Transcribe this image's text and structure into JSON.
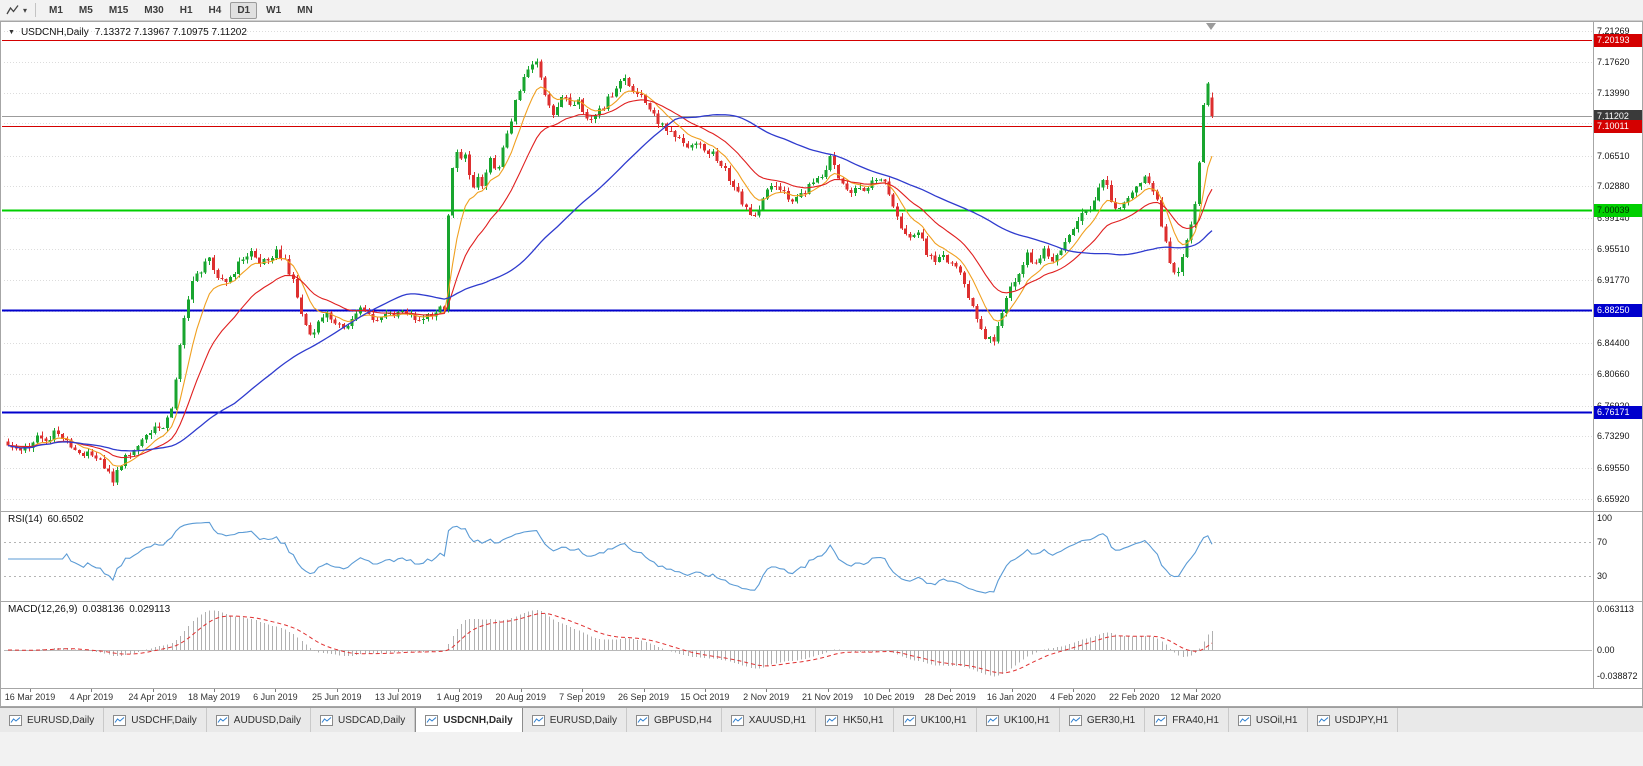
{
  "toolbar": {
    "timeframes": [
      "M1",
      "M5",
      "M15",
      "M30",
      "H1",
      "H4",
      "D1",
      "W1",
      "MN"
    ],
    "active_timeframe": "D1"
  },
  "chart": {
    "symbol_period": "USDCNH,Daily",
    "ohlc_display": "7.13372 7.13967 7.10975 7.11202",
    "marker_glyph": "▼"
  },
  "price_axis": {
    "labels": [
      "7.21269",
      "7.17620",
      "7.13990",
      "7.10360",
      "7.06510",
      "7.02880",
      "6.99140",
      "6.95510",
      "6.91770",
      "6.88140",
      "6.84400",
      "6.80660",
      "6.76920",
      "6.73290",
      "6.69550",
      "6.65920"
    ],
    "badges": [
      {
        "text": "7.20193",
        "price": 7.20193,
        "bg": "#d40000",
        "fg": "#ffffff"
      },
      {
        "text": "7.11202",
        "price": 7.11202,
        "bg": "#3a3a3a",
        "fg": "#ffffff"
      },
      {
        "text": "7.10011",
        "price": 7.10011,
        "bg": "#d40000",
        "fg": "#ffffff"
      },
      {
        "text": "7.00039",
        "price": 7.00039,
        "bg": "#00cf00",
        "fg": "#002b00"
      },
      {
        "text": "6.88250",
        "price": 6.8825,
        "bg": "#0000cd",
        "fg": "#ffffff"
      },
      {
        "text": "6.76171",
        "price": 6.76171,
        "bg": "#0000cd",
        "fg": "#ffffff"
      }
    ]
  },
  "levels": [
    {
      "price": 7.20193,
      "color": "#d40000",
      "width": 1
    },
    {
      "price": 7.11202,
      "color": "#9c9c9c",
      "width": 1
    },
    {
      "price": 7.10011,
      "color": "#d40000",
      "width": 1
    },
    {
      "price": 7.00039,
      "color": "#00cf00",
      "width": 2
    },
    {
      "price": 6.8825,
      "color": "#0000cd",
      "width": 2
    },
    {
      "price": 6.76171,
      "color": "#0000cd",
      "width": 2
    }
  ],
  "indicators": {
    "rsi": {
      "name": "RSI(14)",
      "value": "60.6502",
      "period": 14,
      "line_color": "#5b9bd5",
      "levels": [
        70,
        30
      ],
      "scale": [
        {
          "text": "100",
          "v": 100
        },
        {
          "text": "70",
          "v": 70
        },
        {
          "text": "30",
          "v": 30
        }
      ]
    },
    "macd": {
      "name": "MACD(12,26,9)",
      "value_macd": "0.038136",
      "value_signal": "0.029113",
      "histogram_color": "#b0b0b0",
      "signal_color": "#e03030",
      "scale": [
        {
          "text": "0.063113",
          "v": 0.063113
        },
        {
          "text": "0.00",
          "v": 0
        },
        {
          "text": "-0.038872",
          "v": -0.038872
        }
      ]
    }
  },
  "x_axis": {
    "labels": [
      "16 Mar 2019",
      "4 Apr 2019",
      "24 Apr 2019",
      "18 May 2019",
      "6 Jun 2019",
      "25 Jun 2019",
      "13 Jul 2019",
      "1 Aug 2019",
      "20 Aug 2019",
      "7 Sep 2019",
      "26 Sep 2019",
      "15 Oct 2019",
      "2 Nov 2019",
      "21 Nov 2019",
      "10 Dec 2019",
      "28 Dec 2019",
      "16 Jan 2020",
      "4 Feb 2020",
      "22 Feb 2020",
      "12 Mar 2020"
    ]
  },
  "tabs": {
    "active_index": 4,
    "items": [
      {
        "label": "EURUSD,Daily"
      },
      {
        "label": "USDCHF,Daily"
      },
      {
        "label": "AUDUSD,Daily"
      },
      {
        "label": "USDCAD,Daily"
      },
      {
        "label": "USDCNH,Daily"
      },
      {
        "label": "EURUSD,Daily"
      },
      {
        "label": "GBPUSD,H4"
      },
      {
        "label": "XAUUSD,H1"
      },
      {
        "label": "HK50,H1"
      },
      {
        "label": "UK100,H1"
      },
      {
        "label": "UK100,H1"
      },
      {
        "label": "GER30,H1"
      },
      {
        "label": "FRA40,H1"
      },
      {
        "label": "USOil,H1"
      },
      {
        "label": "USDJPY,H1"
      }
    ]
  },
  "chart_data": {
    "type": "candlestick",
    "symbol": "USDCNH",
    "period": "Daily",
    "last_candle": {
      "open": 7.13372,
      "high": 7.13967,
      "low": 7.10975,
      "close": 7.11202
    },
    "x_range": [
      "16 Mar 2019",
      "20 Mar 2020"
    ],
    "y_range": [
      6.6592,
      7.2127
    ],
    "candle_count": 288,
    "noise_amplitude": 0.009,
    "approx_close_waypoints": [
      [
        0,
        6.725
      ],
      [
        3,
        6.716
      ],
      [
        5,
        6.722
      ],
      [
        7,
        6.734
      ],
      [
        9,
        6.727
      ],
      [
        11,
        6.739
      ],
      [
        13,
        6.731
      ],
      [
        15,
        6.721
      ],
      [
        17,
        6.711
      ],
      [
        19,
        6.717
      ],
      [
        21,
        6.71
      ],
      [
        23,
        6.694
      ],
      [
        25,
        6.681
      ],
      [
        27,
        6.701
      ],
      [
        29,
        6.714
      ],
      [
        31,
        6.722
      ],
      [
        33,
        6.734
      ],
      [
        35,
        6.741
      ],
      [
        37,
        6.747
      ],
      [
        39,
        6.768
      ],
      [
        40,
        6.798
      ],
      [
        41,
        6.838
      ],
      [
        42,
        6.872
      ],
      [
        43,
        6.899
      ],
      [
        44,
        6.917
      ],
      [
        46,
        6.929
      ],
      [
        48,
        6.944
      ],
      [
        50,
        6.924
      ],
      [
        52,
        6.914
      ],
      [
        54,
        6.929
      ],
      [
        56,
        6.944
      ],
      [
        58,
        6.951
      ],
      [
        60,
        6.937
      ],
      [
        62,
        6.945
      ],
      [
        64,
        6.951
      ],
      [
        66,
        6.939
      ],
      [
        68,
        6.919
      ],
      [
        70,
        6.877
      ],
      [
        72,
        6.854
      ],
      [
        74,
        6.867
      ],
      [
        76,
        6.877
      ],
      [
        78,
        6.871
      ],
      [
        80,
        6.857
      ],
      [
        82,
        6.871
      ],
      [
        84,
        6.883
      ],
      [
        86,
        6.877
      ],
      [
        88,
        6.871
      ],
      [
        90,
        6.875
      ],
      [
        92,
        6.879
      ],
      [
        94,
        6.883
      ],
      [
        96,
        6.877
      ],
      [
        98,
        6.871
      ],
      [
        100,
        6.877
      ],
      [
        102,
        6.881
      ],
      [
        104,
        6.886
      ],
      [
        105,
        6.998
      ],
      [
        106,
        7.052
      ],
      [
        107,
        7.072
      ],
      [
        108,
        7.058
      ],
      [
        109,
        7.068
      ],
      [
        110,
        7.046
      ],
      [
        111,
        7.028
      ],
      [
        112,
        7.04
      ],
      [
        113,
        7.028
      ],
      [
        114,
        7.044
      ],
      [
        115,
        7.058
      ],
      [
        116,
        7.046
      ],
      [
        117,
        7.056
      ],
      [
        118,
        7.072
      ],
      [
        119,
        7.088
      ],
      [
        120,
        7.104
      ],
      [
        121,
        7.128
      ],
      [
        122,
        7.146
      ],
      [
        123,
        7.159
      ],
      [
        124,
        7.169
      ],
      [
        125,
        7.174
      ],
      [
        126,
        7.179
      ],
      [
        127,
        7.157
      ],
      [
        128,
        7.139
      ],
      [
        129,
        7.127
      ],
      [
        130,
        7.117
      ],
      [
        131,
        7.124
      ],
      [
        132,
        7.131
      ],
      [
        133,
        7.135
      ],
      [
        134,
        7.127
      ],
      [
        135,
        7.121
      ],
      [
        136,
        7.127
      ],
      [
        137,
        7.117
      ],
      [
        138,
        7.109
      ],
      [
        139,
        7.107
      ],
      [
        140,
        7.111
      ],
      [
        141,
        7.117
      ],
      [
        142,
        7.124
      ],
      [
        143,
        7.131
      ],
      [
        144,
        7.139
      ],
      [
        145,
        7.147
      ],
      [
        146,
        7.153
      ],
      [
        147,
        7.157
      ],
      [
        148,
        7.149
      ],
      [
        149,
        7.144
      ],
      [
        150,
        7.137
      ],
      [
        151,
        7.141
      ],
      [
        152,
        7.127
      ],
      [
        153,
        7.117
      ],
      [
        155,
        7.107
      ],
      [
        157,
        7.097
      ],
      [
        159,
        7.091
      ],
      [
        161,
        7.081
      ],
      [
        163,
        7.075
      ],
      [
        165,
        7.079
      ],
      [
        167,
        7.071
      ],
      [
        169,
        7.063
      ],
      [
        171,
        7.047
      ],
      [
        173,
        7.029
      ],
      [
        175,
        7.011
      ],
      [
        177,
        6.991
      ],
      [
        179,
        7.001
      ],
      [
        181,
        7.023
      ],
      [
        183,
        7.031
      ],
      [
        185,
        7.021
      ],
      [
        187,
        7.011
      ],
      [
        189,
        7.019
      ],
      [
        191,
        7.029
      ],
      [
        193,
        7.035
      ],
      [
        195,
        7.051
      ],
      [
        196,
        7.067
      ],
      [
        197,
        7.057
      ],
      [
        198,
        7.039
      ],
      [
        199,
        7.031
      ],
      [
        201,
        7.021
      ],
      [
        203,
        7.025
      ],
      [
        205,
        7.029
      ],
      [
        207,
        7.035
      ],
      [
        209,
        7.031
      ],
      [
        211,
        7.001
      ],
      [
        213,
        6.977
      ],
      [
        215,
        6.969
      ],
      [
        217,
        6.975
      ],
      [
        219,
        6.951
      ],
      [
        221,
        6.937
      ],
      [
        223,
        6.945
      ],
      [
        225,
        6.939
      ],
      [
        227,
        6.927
      ],
      [
        229,
        6.899
      ],
      [
        231,
        6.871
      ],
      [
        233,
        6.851
      ],
      [
        235,
        6.845
      ],
      [
        236,
        6.861
      ],
      [
        237,
        6.881
      ],
      [
        238,
        6.899
      ],
      [
        239,
        6.911
      ],
      [
        241,
        6.929
      ],
      [
        243,
        6.947
      ],
      [
        245,
        6.939
      ],
      [
        247,
        6.953
      ],
      [
        249,
        6.943
      ],
      [
        251,
        6.957
      ],
      [
        253,
        6.969
      ],
      [
        255,
        6.987
      ],
      [
        257,
        6.999
      ],
      [
        259,
        7.013
      ],
      [
        261,
        7.037
      ],
      [
        262,
        7.029
      ],
      [
        263,
        7.011
      ],
      [
        265,
        7.001
      ],
      [
        267,
        7.017
      ],
      [
        269,
        7.027
      ],
      [
        271,
        7.037
      ],
      [
        273,
        7.021
      ],
      [
        274,
        7.011
      ],
      [
        275,
        6.981
      ],
      [
        276,
        6.961
      ],
      [
        277,
        6.941
      ],
      [
        278,
        6.931
      ],
      [
        279,
        6.927
      ],
      [
        280,
        6.944
      ],
      [
        281,
        6.961
      ],
      [
        282,
        6.984
      ],
      [
        283,
        7.004
      ],
      [
        284,
        7.058
      ],
      [
        285,
        7.128
      ],
      [
        286,
        7.154
      ],
      [
        287,
        7.112
      ]
    ],
    "colors": {
      "up": "#18a52f",
      "down": "#dd2f2f",
      "ma_fast": "#f0a020",
      "ma_mid": "#e02020",
      "ma_slow": "#2f3bce",
      "grid": "#dcdcdc"
    }
  }
}
